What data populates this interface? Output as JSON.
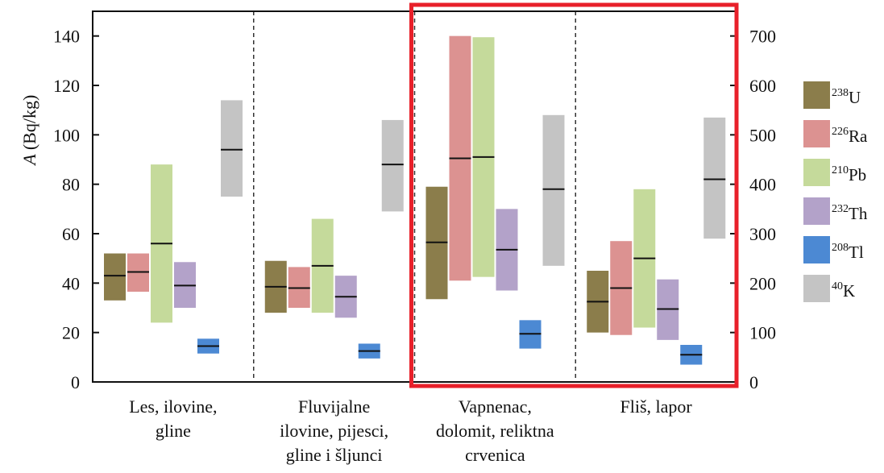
{
  "chart_data": {
    "type": "bar",
    "subtype": "floating-range-with-median",
    "ylabel_italic": "A",
    "ylabel_rest": "(Bq/kg)",
    "y_left_ticks": [
      "0",
      "20",
      "40",
      "60",
      "80",
      "100",
      "120",
      "140"
    ],
    "y_left_range": [
      0,
      150
    ],
    "y_right_ticks": [
      "0",
      "100",
      "200",
      "300",
      "400",
      "500",
      "600",
      "700"
    ],
    "y_right_range": [
      0,
      750
    ],
    "right_axis_series": "40K",
    "grid": false,
    "legend_position": "right",
    "categories": [
      {
        "lines": [
          "Les, ilovine,",
          "gline"
        ]
      },
      {
        "lines": [
          "Fluvijalne",
          "ilovine, pijesci,",
          "gline i šljunci"
        ]
      },
      {
        "lines": [
          "Vapnenac,",
          "dolomit, reliktna",
          "crvenica"
        ]
      },
      {
        "lines": [
          "Fliš, lapor"
        ]
      }
    ],
    "highlighted_categories": [
      2,
      3
    ],
    "highlight_color": "#e8202a",
    "series": [
      {
        "key": "238U",
        "mass": "238",
        "element": "U",
        "color": "#8b7d4b",
        "axis": "left",
        "ranges": [
          [
            33,
            52,
            43
          ],
          [
            28,
            49,
            38.5
          ],
          [
            33.5,
            79,
            56.5
          ],
          [
            20,
            45,
            32.5
          ]
        ]
      },
      {
        "key": "226Ra",
        "mass": "226",
        "element": "Ra",
        "color": "#dc9291",
        "axis": "left",
        "ranges": [
          [
            36.5,
            52,
            44.5
          ],
          [
            30,
            46.5,
            38
          ],
          [
            41,
            140,
            90.5
          ],
          [
            19,
            57,
            38
          ]
        ]
      },
      {
        "key": "210Pb",
        "mass": "210",
        "element": "Pb",
        "color": "#c5da9b",
        "axis": "left",
        "ranges": [
          [
            24,
            88,
            56
          ],
          [
            28,
            66,
            47
          ],
          [
            42.5,
            139.5,
            91
          ],
          [
            22,
            78,
            50
          ]
        ]
      },
      {
        "key": "232Th",
        "mass": "232",
        "element": "Th",
        "color": "#b3a2c9",
        "axis": "left",
        "ranges": [
          [
            30,
            48.5,
            39
          ],
          [
            26,
            43,
            34.5
          ],
          [
            37,
            70,
            53.5
          ],
          [
            17,
            41.5,
            29.5
          ]
        ]
      },
      {
        "key": "208Tl",
        "mass": "208",
        "element": "Tl",
        "color": "#4c89d3",
        "axis": "left",
        "ranges": [
          [
            11.5,
            17.5,
            14.5
          ],
          [
            9.5,
            15.5,
            12.5
          ],
          [
            13.5,
            25,
            19.5
          ],
          [
            7,
            15,
            11
          ]
        ]
      },
      {
        "key": "40K",
        "mass": "40",
        "element": "K",
        "color": "#c4c4c4",
        "axis": "right",
        "ranges": [
          [
            375,
            570,
            470
          ],
          [
            345,
            530,
            440
          ],
          [
            235,
            540,
            390
          ],
          [
            290,
            535,
            410
          ]
        ]
      }
    ]
  }
}
